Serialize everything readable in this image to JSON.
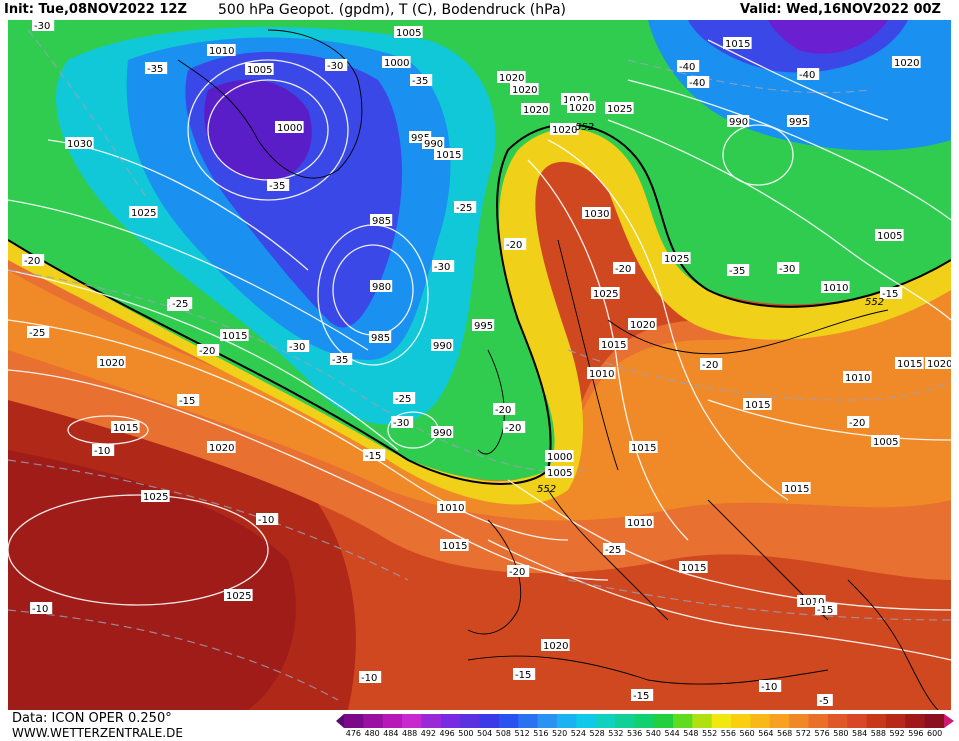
{
  "header": {
    "init": "Init: Tue,08NOV2022 12Z",
    "title": "500 hPa Geopot. (gpdm), T (C), Bodendruck (hPa)",
    "valid": "Valid: Wed,16NOV2022 00Z"
  },
  "footer": {
    "source": "Data: ICON OPER 0.250°",
    "site": "WWW.WETTERZENTRALE.DE"
  },
  "colorbar": {
    "ticks": [
      "476",
      "480",
      "484",
      "488",
      "492",
      "496",
      "500",
      "504",
      "508",
      "512",
      "516",
      "520",
      "524",
      "528",
      "532",
      "536",
      "540",
      "544",
      "548",
      "552",
      "556",
      "560",
      "564",
      "568",
      "572",
      "576",
      "580",
      "584",
      "588",
      "592",
      "596",
      "600"
    ],
    "colors": [
      "#5a0a6e",
      "#7a0a8a",
      "#9a10a0",
      "#b818b8",
      "#c828d0",
      "#9a2ad8",
      "#7a2ae0",
      "#5a32e0",
      "#3a3ae8",
      "#2a52f0",
      "#2a72f0",
      "#2a92f0",
      "#1ab2f0",
      "#10c8e8",
      "#10d0c0",
      "#10d098",
      "#10d070",
      "#20d040",
      "#60dc20",
      "#b0e010",
      "#f0e810",
      "#f8d010",
      "#f8b818",
      "#f8a020",
      "#f08828",
      "#e87028",
      "#e05828",
      "#d84828",
      "#c83818",
      "#b82818",
      "#a01818",
      "#8a1020",
      "#d01870"
    ]
  },
  "pressure_labels": [
    "1030",
    "1025",
    "1015",
    "1020",
    "1015",
    "1020",
    "1025",
    "1025",
    "1010",
    "1005",
    "1005",
    "1000",
    "1000",
    "995",
    "990",
    "985",
    "980",
    "985",
    "990",
    "995",
    "990",
    "1000",
    "1005",
    "1010",
    "1015",
    "1020",
    "1025",
    "1030",
    "1025",
    "1020",
    "1015",
    "1010",
    "1015",
    "1010",
    "1015",
    "1020",
    "1020",
    "1020",
    "1020",
    "1020",
    "1020",
    "1015",
    "1010",
    "1015",
    "1020",
    "1010",
    "1015",
    "1005",
    "1015",
    "1010",
    "990",
    "995",
    "1005",
    "1010",
    "1020",
    "1015",
    "1025",
    "1030"
  ],
  "temp_labels": [
    "-30",
    "-35",
    "-35",
    "-30",
    "-35",
    "-25",
    "-30",
    "-20",
    "-25",
    "-30",
    "-20",
    "-20",
    "-25",
    "-20",
    "-15",
    "-10",
    "-15",
    "-20",
    "-25",
    "-20",
    "-20",
    "-10",
    "-15",
    "-15",
    "-20",
    "-20",
    "-20",
    "-25",
    "-30",
    "-35",
    "-30",
    "-35",
    "-40",
    "-40",
    "-40",
    "-10",
    "-15",
    "-10",
    "-10",
    "-5",
    "-15",
    "-20",
    "-15",
    "-20",
    "-25",
    "-15"
  ],
  "contour_labels": [
    "552",
    "552",
    "552",
    "552"
  ]
}
